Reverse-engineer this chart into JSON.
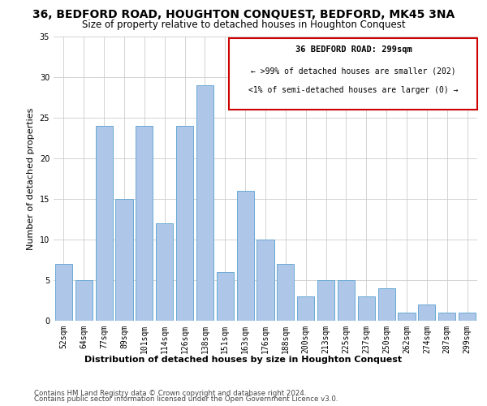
{
  "title1": "36, BEDFORD ROAD, HOUGHTON CONQUEST, BEDFORD, MK45 3NA",
  "title2": "Size of property relative to detached houses in Houghton Conquest",
  "xlabel": "Distribution of detached houses by size in Houghton Conquest",
  "ylabel": "Number of detached properties",
  "categories": [
    "52sqm",
    "64sqm",
    "77sqm",
    "89sqm",
    "101sqm",
    "114sqm",
    "126sqm",
    "138sqm",
    "151sqm",
    "163sqm",
    "176sqm",
    "188sqm",
    "200sqm",
    "213sqm",
    "225sqm",
    "237sqm",
    "250sqm",
    "262sqm",
    "274sqm",
    "287sqm",
    "299sqm"
  ],
  "values": [
    7,
    5,
    24,
    15,
    24,
    12,
    24,
    29,
    6,
    16,
    10,
    7,
    3,
    5,
    5,
    3,
    4,
    1,
    2,
    1,
    1
  ],
  "bar_color": "#aec6e8",
  "bar_edge_color": "#6aaad4",
  "annotation_title": "36 BEDFORD ROAD: 299sqm",
  "annotation_line1": "← >99% of detached houses are smaller (202)",
  "annotation_line2": "<1% of semi-detached houses are larger (0) →",
  "annotation_box_color": "#ffffff",
  "annotation_box_edge": "#cc0000",
  "footer1": "Contains HM Land Registry data © Crown copyright and database right 2024.",
  "footer2": "Contains public sector information licensed under the Open Government Licence v3.0.",
  "ylim": [
    0,
    35
  ],
  "yticks": [
    0,
    5,
    10,
    15,
    20,
    25,
    30,
    35
  ],
  "title1_fontsize": 10,
  "title2_fontsize": 8.5,
  "xlabel_fontsize": 8,
  "ylabel_fontsize": 8,
  "tick_fontsize": 7,
  "annot_title_fontsize": 7.5,
  "annot_line_fontsize": 7,
  "footer_fontsize": 6.2
}
